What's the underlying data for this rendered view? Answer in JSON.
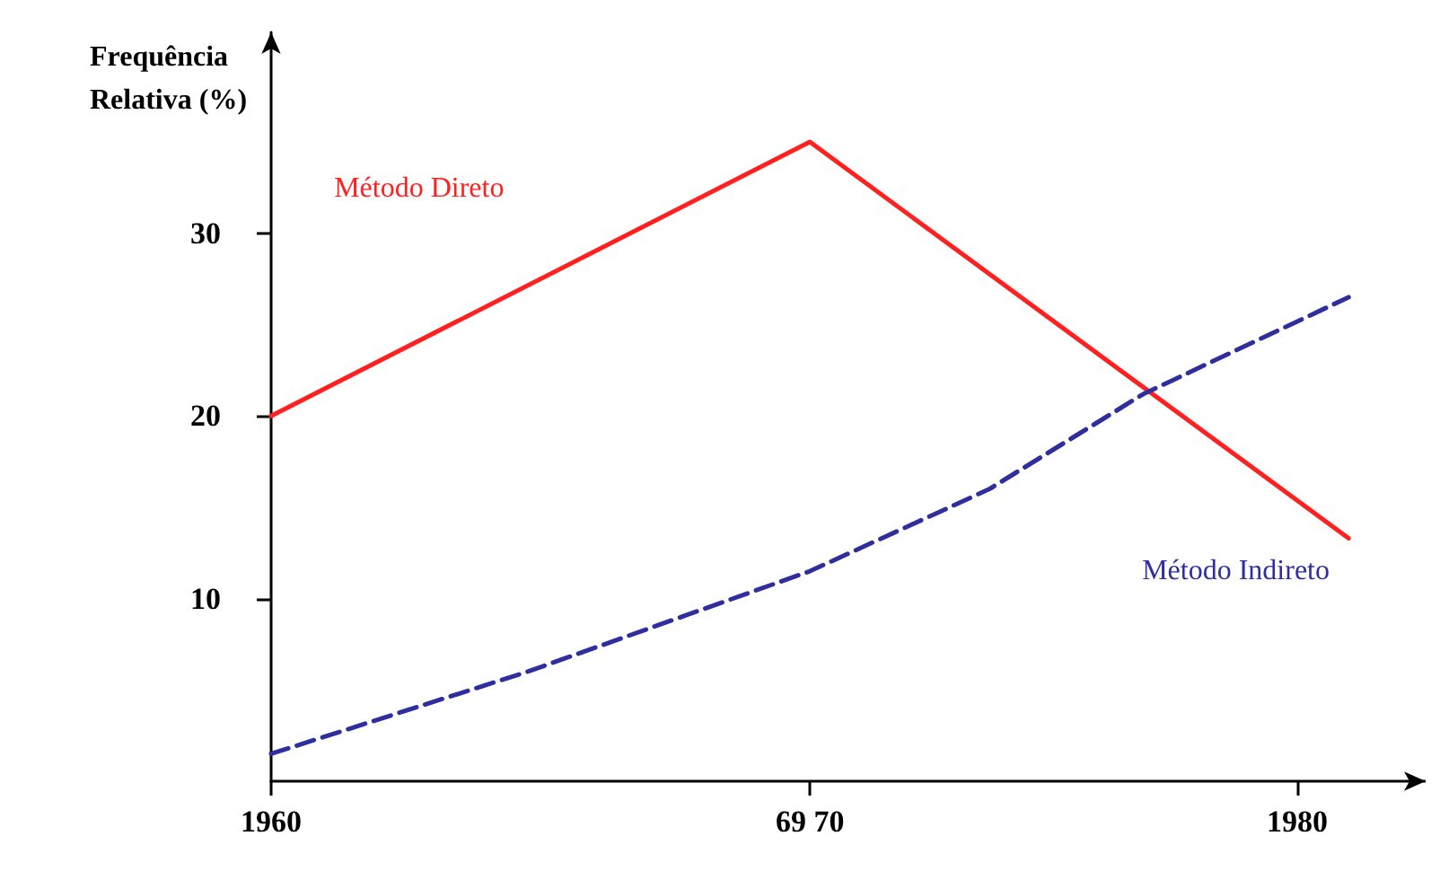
{
  "chart_data": {
    "type": "line",
    "ylabel": "Frequência\nRelativa (%)",
    "xlim": [
      1960,
      1982.5
    ],
    "ylim": [
      0,
      41
    ],
    "xticks": [
      1960,
      {
        "value": 1970.5,
        "label": "69 70"
      },
      1980
    ],
    "yticks": [
      10,
      20,
      30
    ],
    "grid": false,
    "legend": false,
    "marker": "none",
    "series": [
      {
        "name": "Método Direto",
        "color": "#ff2020",
        "line_style": "solid",
        "x": [
          1960,
          1970.5,
          1981
        ],
        "values": [
          20,
          35,
          13.3
        ]
      },
      {
        "name": "Método Indireto",
        "color": "#2e2e9e",
        "line_style": "dashed",
        "x": [
          1960,
          1965,
          1970.5,
          1974,
          1977,
          1981
        ],
        "values": [
          1.5,
          6,
          11.5,
          16,
          21.2,
          26.5
        ]
      }
    ]
  }
}
